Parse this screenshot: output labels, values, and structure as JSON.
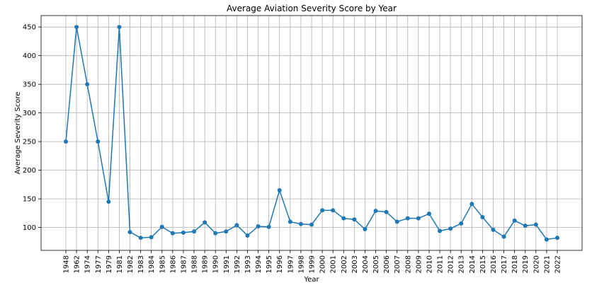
{
  "chart_data": {
    "type": "line",
    "title": "Average Aviation Severity Score by Year",
    "xlabel": "Year",
    "ylabel": "Average Severity Score",
    "categories": [
      "1948",
      "1962",
      "1974",
      "1977",
      "1979",
      "1981",
      "1982",
      "1983",
      "1984",
      "1985",
      "1986",
      "1987",
      "1988",
      "1989",
      "1990",
      "1991",
      "1992",
      "1993",
      "1994",
      "1995",
      "1996",
      "1997",
      "1998",
      "1999",
      "2000",
      "2001",
      "2002",
      "2003",
      "2004",
      "2005",
      "2006",
      "2007",
      "2008",
      "2009",
      "2010",
      "2011",
      "2012",
      "2013",
      "2014",
      "2015",
      "2016",
      "2017",
      "2018",
      "2019",
      "2020",
      "2021",
      "2022"
    ],
    "series": [
      {
        "values": [
          250,
          450,
          350,
          250,
          145,
          450,
          92,
          82,
          83,
          101,
          90,
          91,
          93,
          109,
          90,
          93,
          104,
          86,
          102,
          101,
          165,
          110,
          106,
          105,
          130,
          130,
          116,
          114,
          97,
          129,
          127,
          110,
          116,
          116,
          124,
          94,
          98,
          107,
          141,
          118,
          96,
          84,
          112,
          103,
          105,
          79,
          82
        ]
      }
    ],
    "yticks": [
      100,
      150,
      200,
      250,
      300,
      350,
      400,
      450
    ],
    "ylim": [
      60,
      470
    ],
    "grid": true,
    "legend": "none",
    "line_color": "#1f77b4",
    "marker": "circle"
  }
}
